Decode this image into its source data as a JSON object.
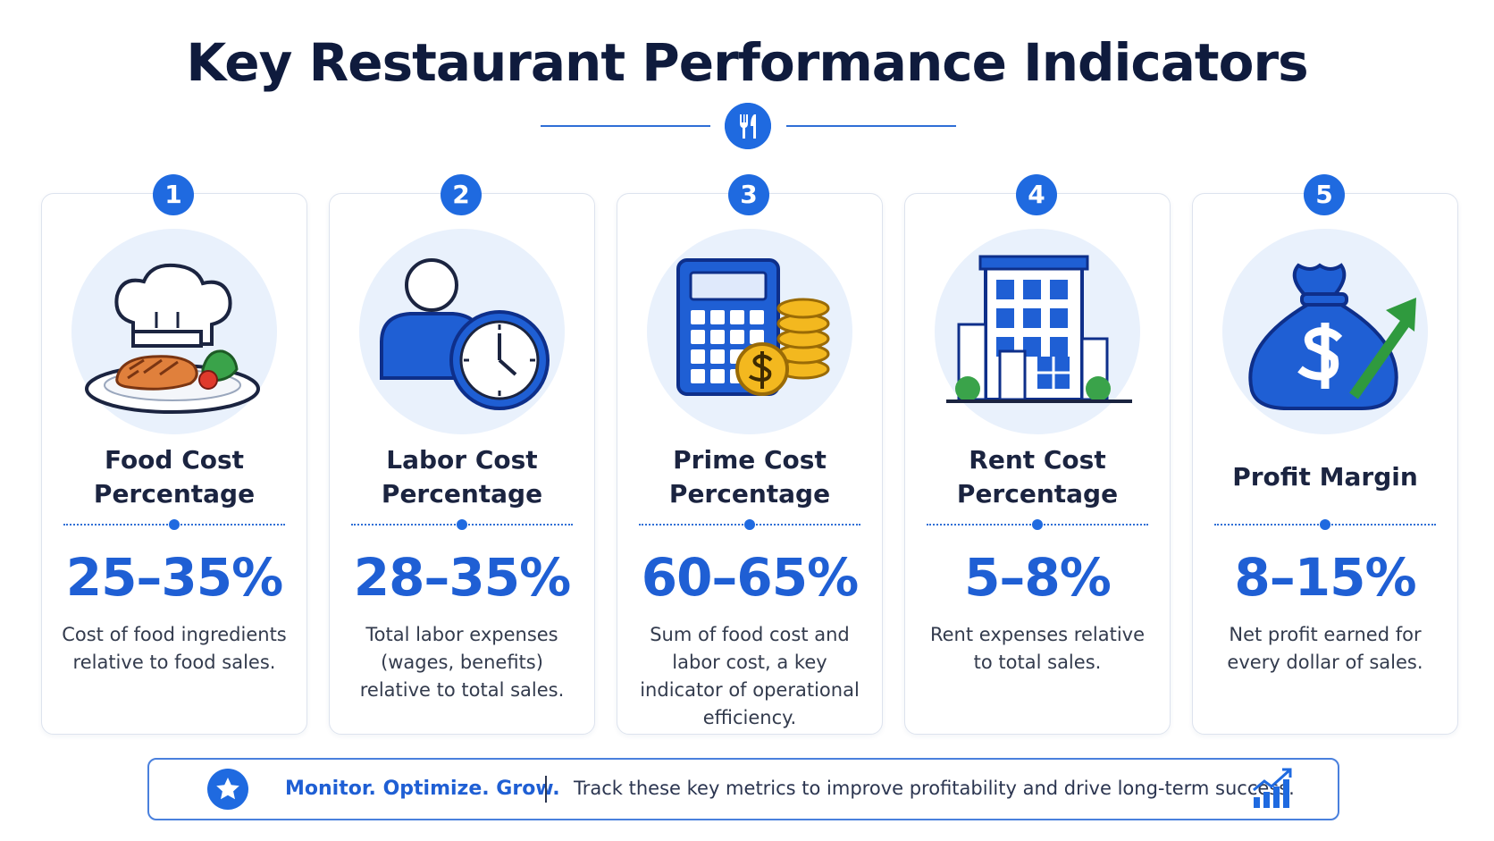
{
  "title": "Key Restaurant Performance Indicators",
  "cards": [
    {
      "number": "1",
      "title": "Food Cost Percentage",
      "value": "25–35%",
      "description": "Cost of food ingredients relative to food sales."
    },
    {
      "number": "2",
      "title": "Labor Cost Percentage",
      "value": "28–35%",
      "description": "Total labor expenses (wages, benefits) relative to total sales."
    },
    {
      "number": "3",
      "title": "Prime Cost Percentage",
      "value": "60–65%",
      "description": "Sum of food cost and labor cost, a key indicator of operational efficiency."
    },
    {
      "number": "4",
      "title": "Rent Cost Percentage",
      "value": "5–8%",
      "description": "Rent expenses relative to total sales."
    },
    {
      "number": "5",
      "title": "Profit Margin",
      "value": "8–15%",
      "description": "Net profit earned for every dollar of sales."
    }
  ],
  "footer": {
    "tagline": "Monitor. Optimize. Grow.",
    "text": "Track these key metrics to improve profitability and drive long-term success."
  }
}
